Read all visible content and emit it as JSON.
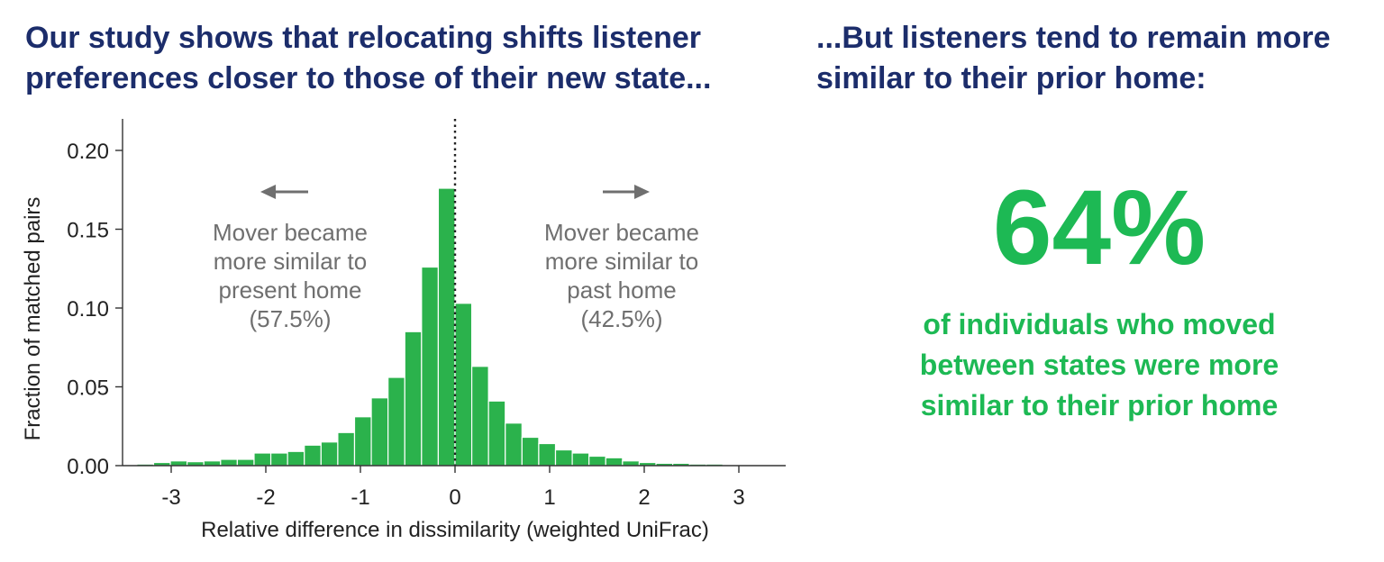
{
  "left_headline": {
    "line1": "Our study shows that relocating shifts listener",
    "line2": "preferences closer to those of their new state..."
  },
  "right_headline": {
    "line1": "...But listeners tend to remain more",
    "line2": "similar to their prior home:"
  },
  "stat": {
    "value": "64%",
    "caption_line1": "of individuals who moved",
    "caption_line2": "between states were more",
    "caption_line3": "similar to their prior home"
  },
  "colors": {
    "headline": "#1c2d6b",
    "accent_green": "#1db954",
    "bar_green": "#2bb24c",
    "annotation_gray": "#6f6f6f"
  },
  "chart_data": {
    "type": "bar",
    "title": "",
    "xlabel": "Relative difference in dissimilarity (weighted UniFrac)",
    "ylabel": "Fraction of matched pairs",
    "xlim": [
      -3.4,
      3.4
    ],
    "ylim": [
      0,
      0.22
    ],
    "xticks": [
      -3,
      -2,
      -1,
      0,
      1,
      2,
      3
    ],
    "yticks": [
      0.0,
      0.05,
      0.1,
      0.15,
      0.2
    ],
    "ytick_labels": [
      "0.00",
      "0.05",
      "0.10",
      "0.15",
      "0.20"
    ],
    "bin_width": 0.177,
    "bin_left_edges": [
      -3.363,
      -3.186,
      -3.009,
      -2.832,
      -2.655,
      -2.478,
      -2.301,
      -2.124,
      -1.947,
      -1.77,
      -1.593,
      -1.416,
      -1.239,
      -1.062,
      -0.885,
      -0.708,
      -0.531,
      -0.354,
      -0.177,
      0.0,
      0.177,
      0.354,
      0.531,
      0.708,
      0.885,
      1.062,
      1.239,
      1.416,
      1.593,
      1.77,
      1.947,
      2.124,
      2.301,
      2.478,
      2.655,
      2.832
    ],
    "values": [
      0.001,
      0.002,
      0.003,
      0.0025,
      0.003,
      0.004,
      0.004,
      0.008,
      0.008,
      0.009,
      0.013,
      0.015,
      0.021,
      0.031,
      0.043,
      0.056,
      0.085,
      0.126,
      0.176,
      0.103,
      0.063,
      0.041,
      0.027,
      0.018,
      0.014,
      0.01,
      0.008,
      0.006,
      0.005,
      0.003,
      0.002,
      0.0015,
      0.0015,
      0.001,
      0.001,
      0.0005
    ],
    "reference_line": {
      "x": 0,
      "style": "dotted"
    },
    "annotations": {
      "left": {
        "line1": "Mover became",
        "line2": "more similar to",
        "line3": "present home",
        "line4": "(57.5%)",
        "arrow": "left"
      },
      "right": {
        "line1": "Mover became",
        "line2": "more similar to",
        "line3": "past home",
        "line4": "(42.5%)",
        "arrow": "right"
      }
    }
  }
}
